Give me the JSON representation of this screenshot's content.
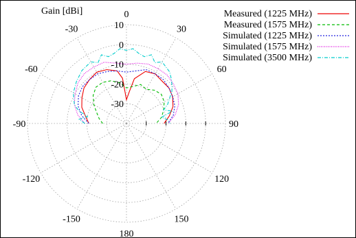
{
  "chart_data": {
    "type": "line",
    "projection": "polar",
    "title": "",
    "radial_label": "Gain [dBi]",
    "radial_axis": {
      "min": -40,
      "max": 10,
      "ticks": [
        10,
        0,
        -10,
        -20,
        -30
      ]
    },
    "angle_ticks": [
      {
        "angle": 0,
        "label": "0"
      },
      {
        "angle": 30,
        "label": "30"
      },
      {
        "angle": 60,
        "label": "60"
      },
      {
        "angle": 90,
        "label": "90"
      },
      {
        "angle": 120,
        "label": "120"
      },
      {
        "angle": 150,
        "label": "150"
      },
      {
        "angle": 180,
        "label": "180"
      },
      {
        "angle": -150,
        "label": "-150"
      },
      {
        "angle": -120,
        "label": "-120"
      },
      {
        "angle": -90,
        "label": "-90"
      },
      {
        "angle": -60,
        "label": "-60"
      },
      {
        "angle": -30,
        "label": "-30"
      }
    ],
    "grid": true,
    "legend_position": "top-right",
    "series": [
      {
        "name": "Measured (1225 MHz)",
        "color": "#ee0000",
        "dash": "",
        "angles": [
          -90,
          -80,
          -70,
          -60,
          -50,
          -40,
          -30,
          -20,
          -10,
          -5,
          0,
          5,
          10,
          20,
          30,
          40,
          50,
          60,
          70,
          80,
          90
        ],
        "values": [
          -21,
          -19,
          -16,
          -14,
          -12,
          -11,
          -10,
          -11,
          -13,
          -17,
          -28,
          -24,
          -17,
          -12,
          -11,
          -12,
          -12,
          -13,
          -15,
          -18,
          -21
        ]
      },
      {
        "name": "Measured (1575 MHz)",
        "color": "#00bb00",
        "dash": "4 3",
        "angles": [
          -90,
          -80,
          -70,
          -60,
          -50,
          -40,
          -30,
          -20,
          -10,
          0,
          10,
          20,
          30,
          40,
          50,
          60,
          70,
          80,
          90
        ],
        "values": [
          -28,
          -26,
          -24,
          -21,
          -18,
          -16,
          -16,
          -17,
          -19,
          -22,
          -21,
          -19,
          -20,
          -18,
          -17,
          -18,
          -20,
          -22,
          -25
        ]
      },
      {
        "name": "Simulated (1225 MHz)",
        "color": "#2222dd",
        "dash": "2 2",
        "angles": [
          -90,
          -80,
          -70,
          -60,
          -50,
          -40,
          -30,
          -20,
          -10,
          0,
          10,
          20,
          30,
          40,
          50,
          60,
          70,
          80,
          90
        ],
        "values": [
          -21,
          -17,
          -14,
          -12,
          -11,
          -11,
          -11,
          -12,
          -13,
          -14,
          -13,
          -11,
          -11,
          -11,
          -12,
          -13,
          -14,
          -16,
          -19
        ]
      },
      {
        "name": "Simulated (1575 MHz)",
        "color": "#dd00dd",
        "dash": "1 1.5",
        "angles": [
          -90,
          -80,
          -70,
          -60,
          -50,
          -40,
          -30,
          -20,
          -10,
          0,
          10,
          20,
          30,
          40,
          50,
          60,
          70,
          80,
          90
        ],
        "values": [
          -19,
          -15,
          -12,
          -10,
          -8,
          -7,
          -7,
          -7,
          -9,
          -10,
          -9,
          -8,
          -8,
          -8,
          -9,
          -10,
          -12,
          -15,
          -19
        ]
      },
      {
        "name": "Simulated (3500 MHz)",
        "color": "#00cccc",
        "dash": "5 2 1 2",
        "angles": [
          -90,
          -85,
          -80,
          -75,
          -70,
          -60,
          -50,
          -40,
          -30,
          -25,
          -20,
          -15,
          -10,
          -5,
          0,
          5,
          10,
          15,
          20,
          25,
          30,
          40,
          45,
          50,
          55,
          60,
          65,
          70,
          75,
          80,
          85,
          90
        ],
        "values": [
          -19,
          -16,
          -20,
          -15,
          -12,
          -9,
          -7,
          -5,
          -4,
          -6,
          -3,
          -5,
          -4,
          -2,
          -3,
          -2,
          -4,
          -5,
          -3,
          -6,
          -4,
          -6,
          -8,
          -10,
          -12,
          -15,
          -17,
          -20,
          -16,
          -22,
          -19,
          -18
        ]
      }
    ]
  }
}
